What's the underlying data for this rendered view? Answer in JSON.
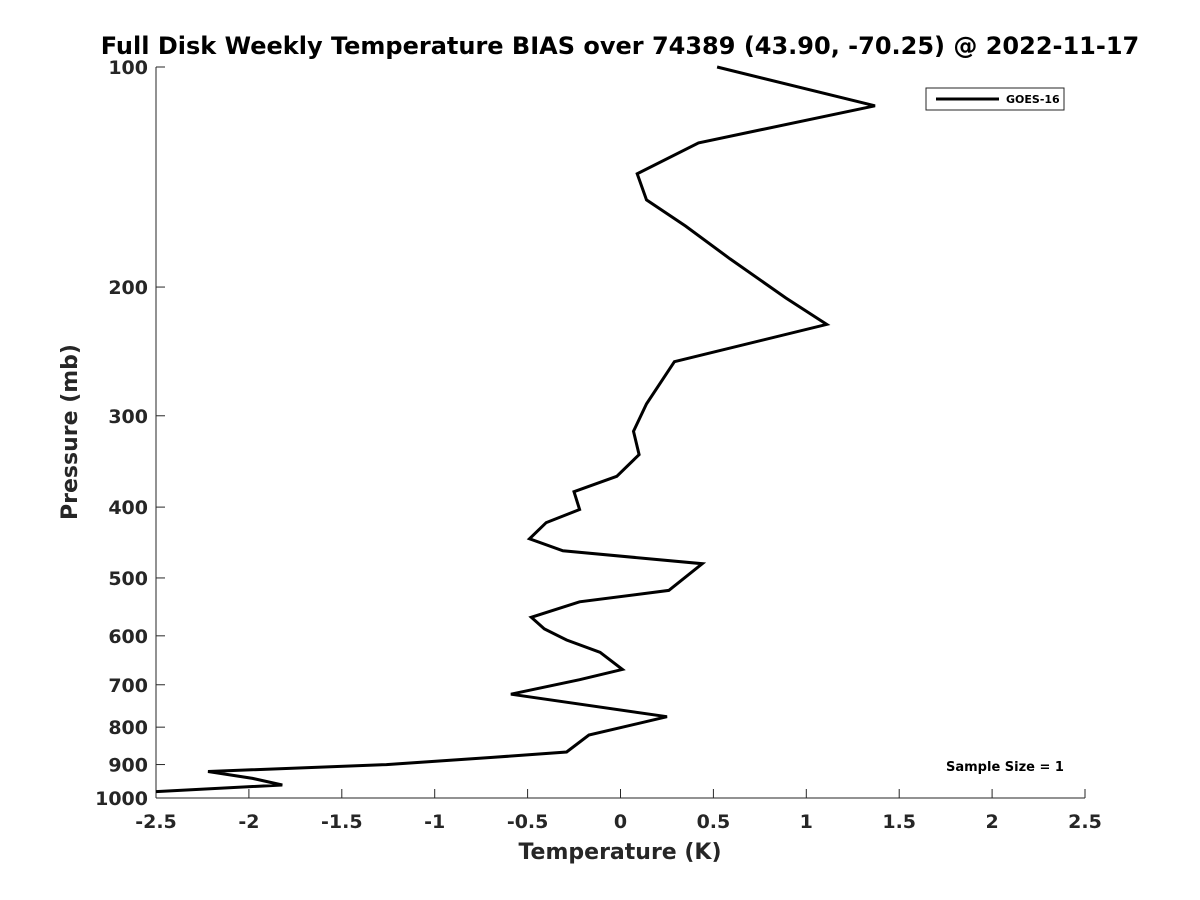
{
  "chart_data": {
    "type": "line",
    "title": "Full Disk Weekly Temperature BIAS over 74389 (43.90, -70.25) @ 2022-11-17",
    "xlabel": "Temperature (K)",
    "ylabel": "Pressure (mb)",
    "xlim": [
      -2.5,
      2.5
    ],
    "ylim": [
      100,
      1000
    ],
    "y_scale": "log",
    "y_reversed": true,
    "grid": false,
    "legend_position": "top-right",
    "x_ticks": [
      -2.5,
      -2,
      -1.5,
      -1,
      -0.5,
      0,
      0.5,
      1,
      1.5,
      2,
      2.5
    ],
    "x_tick_labels": [
      "-2.5",
      "-2",
      "-1.5",
      "-1",
      "-0.5",
      "0",
      "0.5",
      "1",
      "1.5",
      "2",
      "2.5"
    ],
    "y_ticks": [
      100,
      200,
      300,
      400,
      500,
      600,
      700,
      800,
      900,
      1000
    ],
    "y_tick_labels": [
      "100",
      "200",
      "300",
      "400",
      "500",
      "600",
      "700",
      "800",
      "900",
      "1000"
    ],
    "line_color": "#000000",
    "series": [
      {
        "name": "GOES-16",
        "x": [
          0.52,
          1.37,
          0.42,
          0.09,
          0.14,
          0.35,
          0.59,
          0.89,
          1.11,
          0.29,
          0.14,
          0.07,
          0.1,
          -0.02,
          -0.25,
          -0.22,
          -0.4,
          -0.49,
          -0.31,
          0.44,
          0.26,
          -0.22,
          -0.48,
          -0.41,
          -0.29,
          -0.11,
          0.01,
          -0.22,
          -0.59,
          0.25,
          0.01,
          -0.17,
          -0.29,
          -0.69,
          -1.26,
          -2.22,
          -1.98,
          -1.82,
          -2.5
        ],
        "y": [
          100,
          113,
          127,
          140,
          152,
          165,
          183,
          207,
          225,
          253,
          289,
          315,
          339,
          363,
          381,
          403,
          420,
          442,
          459,
          478,
          520,
          539,
          566,
          587,
          608,
          632,
          667,
          689,
          721,
          774,
          800,
          820,
          865,
          880,
          900,
          920,
          940,
          960,
          980
        ]
      }
    ],
    "annotation": "Sample Size = 1"
  }
}
